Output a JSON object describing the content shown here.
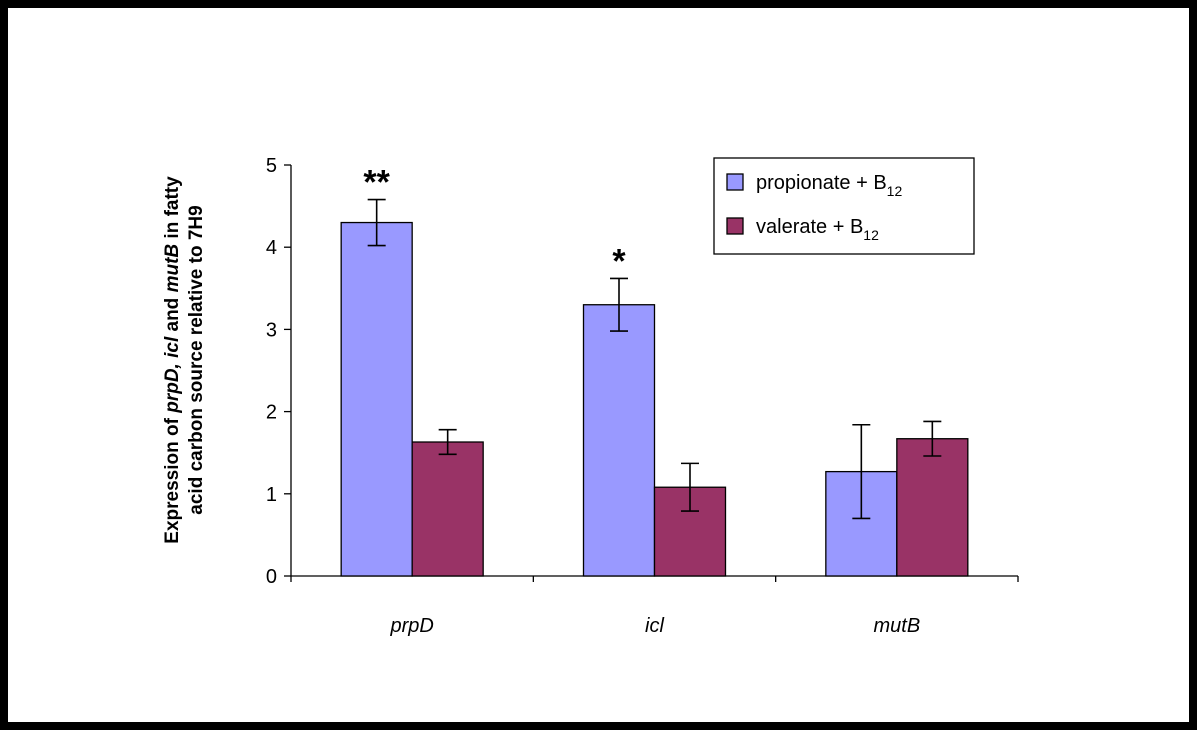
{
  "chart_data": {
    "type": "bar",
    "title": "",
    "categories": [
      "prpD",
      "icl",
      "mutB"
    ],
    "series": [
      {
        "name": "propionate + B12",
        "legend_base": "propionate + B",
        "legend_sub": "12",
        "color": "#9999ff",
        "values": [
          4.3,
          3.3,
          1.27
        ],
        "errors": [
          0.28,
          0.32,
          0.57
        ]
      },
      {
        "name": "valerate + B12",
        "legend_base": "valerate + B",
        "legend_sub": "12",
        "color": "#993366",
        "values": [
          1.63,
          1.08,
          1.67
        ],
        "errors": [
          0.15,
          0.29,
          0.21
        ]
      }
    ],
    "significance": [
      {
        "category": "prpD",
        "series": 0,
        "label": "**"
      },
      {
        "category": "icl",
        "series": 0,
        "label": "*"
      }
    ],
    "ylabel_line1_parts": [
      {
        "text": "Expression of ",
        "italic": false
      },
      {
        "text": "prpD, icl",
        "italic": true
      },
      {
        "text": " and ",
        "italic": false
      },
      {
        "text": "mutB",
        "italic": true
      },
      {
        "text": " in fatty",
        "italic": false
      }
    ],
    "ylabel_line2": "acid carbon source relative to 7H9",
    "ylim": [
      0,
      5
    ],
    "yticks": [
      0,
      1,
      2,
      3,
      4,
      5
    ],
    "grid": false,
    "legend_position": "top-right"
  }
}
